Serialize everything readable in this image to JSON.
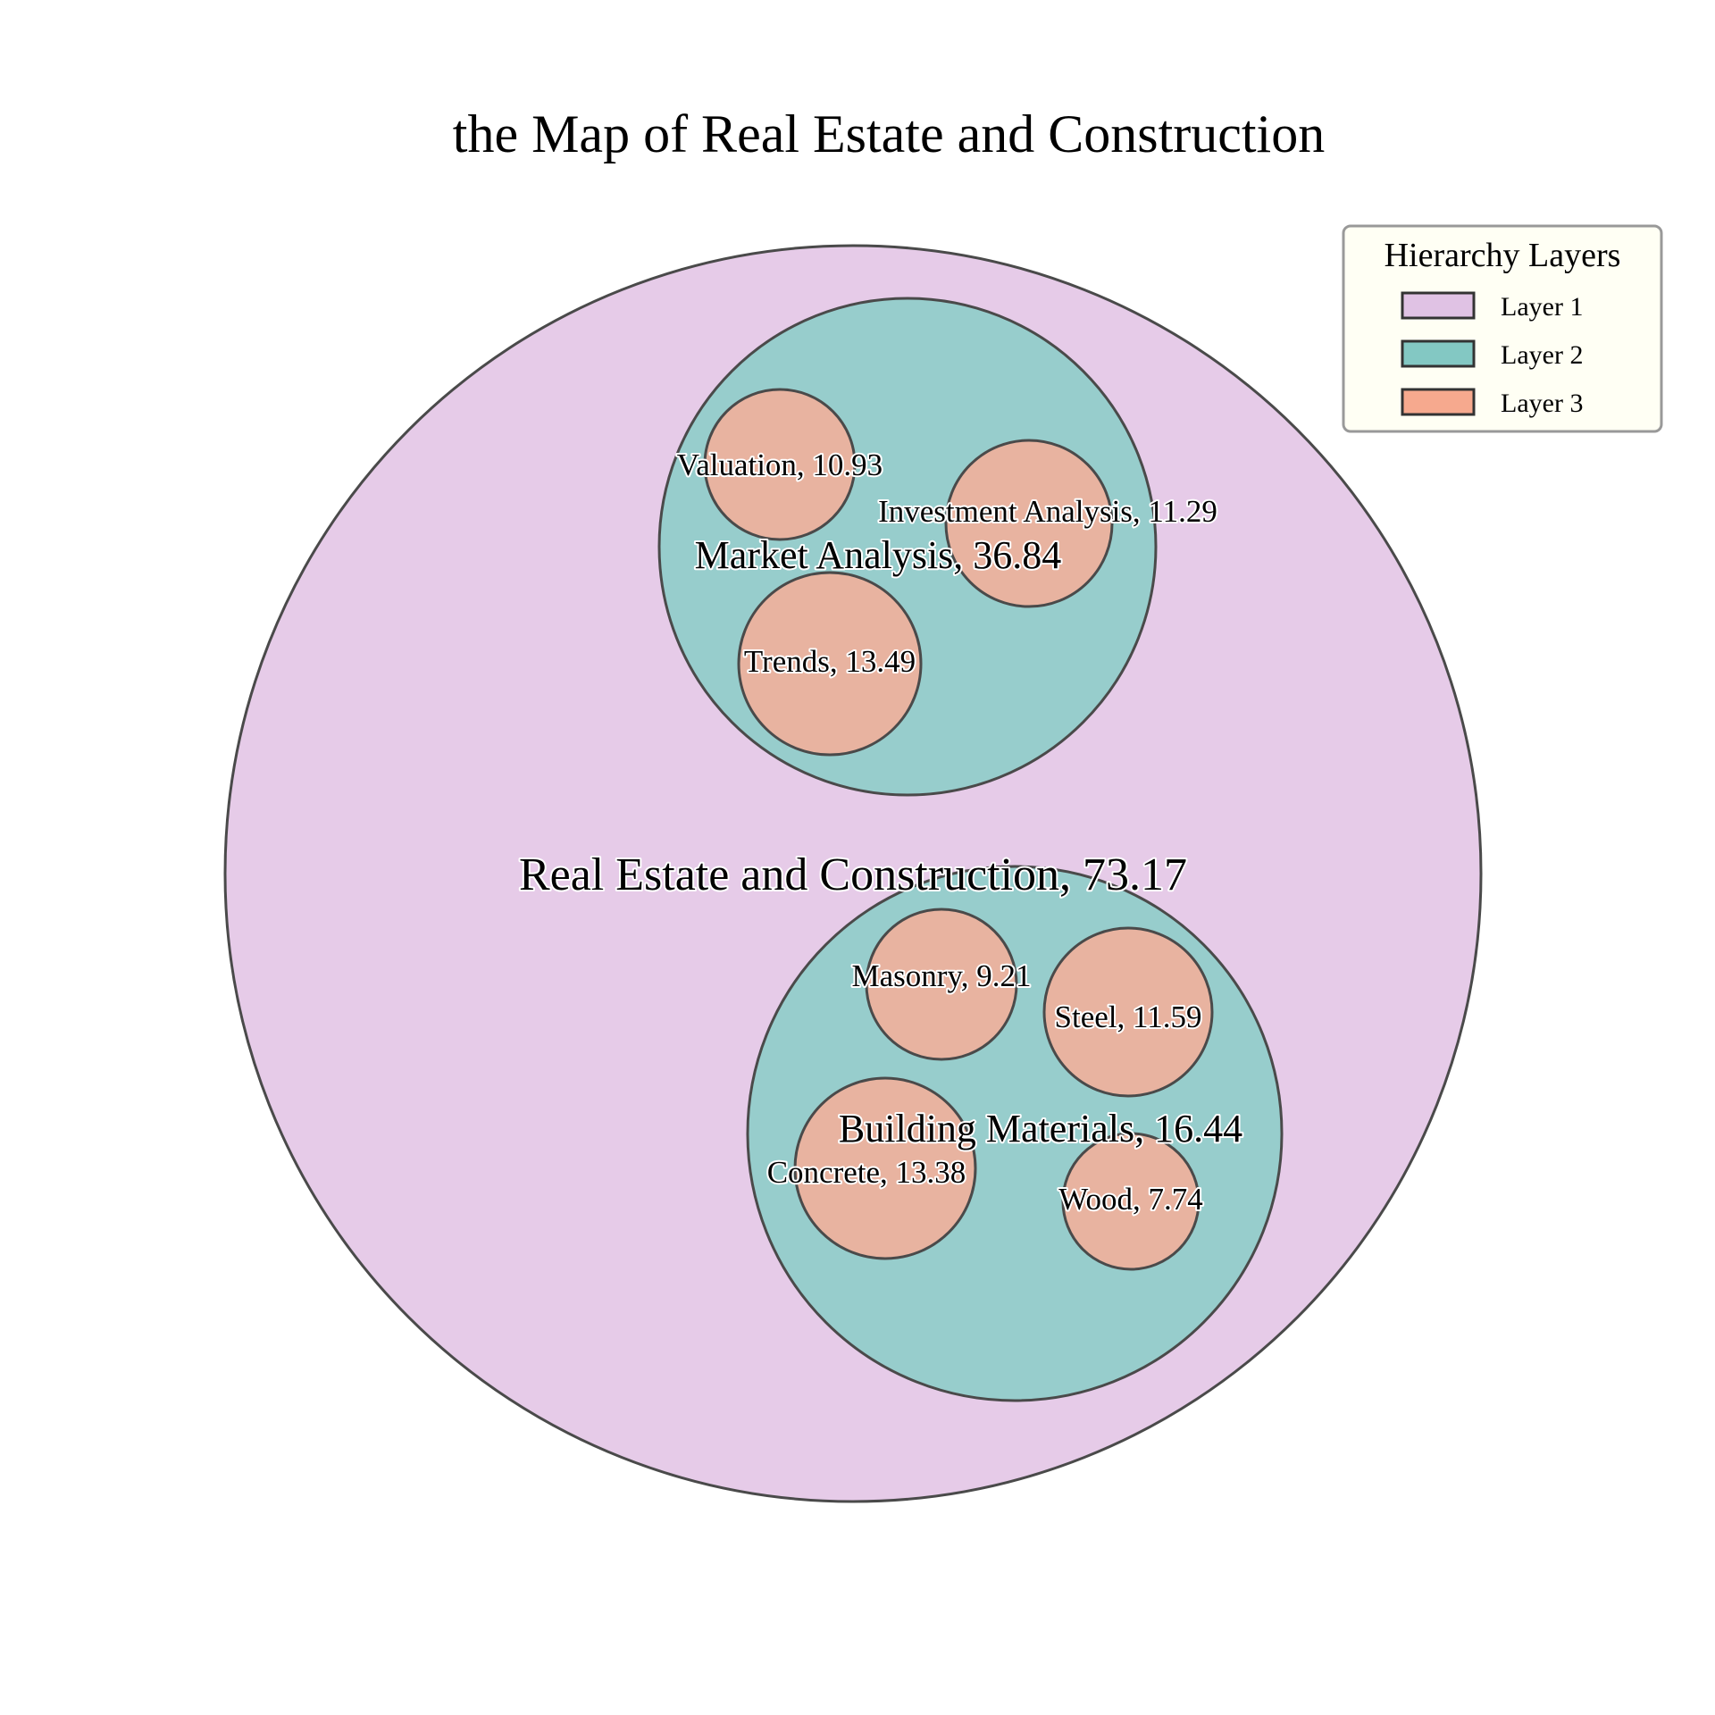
{
  "chart_data": {
    "type": "circle-packing",
    "title": "the Map of Real Estate and Construction",
    "legend": {
      "title": "Hierarchy Layers",
      "placement": "top-right",
      "entries": [
        {
          "label": "Layer 1",
          "color": "#e0c2e4"
        },
        {
          "label": "Layer 2",
          "color": "#83c8c3"
        },
        {
          "label": "Layer 3",
          "color": "#f6a98e"
        }
      ]
    },
    "colors": {
      "layer1": "#e6cbe8",
      "layer2": "#97cdcc",
      "layer3": "#e8b3a0",
      "edge": "#4a4a4a"
    },
    "nodes": [
      {
        "id": "root",
        "name": "Real Estate and Construction",
        "value": 73.17,
        "layer": 1,
        "label": "Real Estate and Construction, 73.17"
      },
      {
        "id": "market",
        "parent": "root",
        "name": "Market Analysis",
        "value": 36.84,
        "layer": 2,
        "label": "Market Analysis, 36.84"
      },
      {
        "id": "valuation",
        "parent": "market",
        "name": "Valuation",
        "value": 10.93,
        "layer": 3,
        "label": "Valuation, 10.93"
      },
      {
        "id": "investment",
        "parent": "market",
        "name": "Investment Analysis",
        "value": 11.29,
        "layer": 3,
        "label": "Investment Analysis, 11.29"
      },
      {
        "id": "trends",
        "parent": "market",
        "name": "Trends",
        "value": 13.49,
        "layer": 3,
        "label": "Trends, 13.49"
      },
      {
        "id": "materials",
        "parent": "root",
        "name": "Building Materials",
        "value": 16.44,
        "layer": 2,
        "label": "Building Materials, 16.44"
      },
      {
        "id": "masonry",
        "parent": "materials",
        "name": "Masonry",
        "value": 9.21,
        "layer": 3,
        "label": "Masonry, 9.21"
      },
      {
        "id": "steel",
        "parent": "materials",
        "name": "Steel",
        "value": 11.59,
        "layer": 3,
        "label": "Steel, 11.59"
      },
      {
        "id": "concrete",
        "parent": "materials",
        "name": "Concrete",
        "value": 13.38,
        "layer": 3,
        "label": "Concrete, 13.38"
      },
      {
        "id": "wood",
        "parent": "materials",
        "name": "Wood",
        "value": 7.74,
        "layer": 3,
        "label": "Wood, 7.74"
      }
    ]
  }
}
